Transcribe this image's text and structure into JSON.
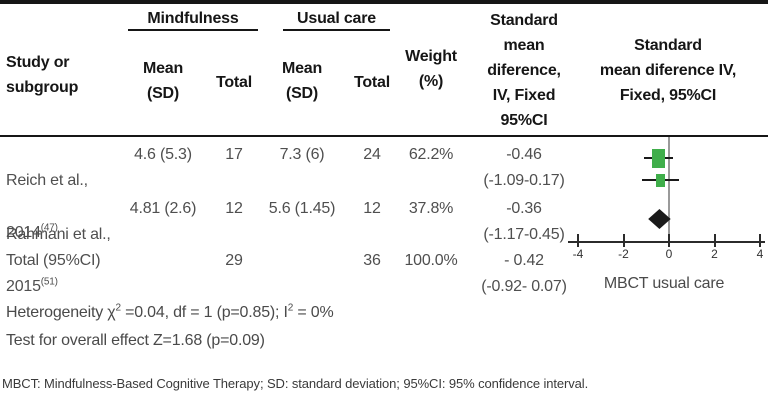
{
  "header": {
    "study_col": "Study or\nsubgroup",
    "group_mindfulness": "Mindfulness",
    "group_usual_care": "Usual care",
    "mean_sd": "Mean\n(SD)",
    "total": "Total",
    "weight": "Weight\n(%)",
    "smd_text_col": "Standard\nmean\ndiference,\nIV, Fixed\n95%CI",
    "smd_plot_col": "Standard\nmean diference IV,\nFixed, 95%CI"
  },
  "rows": [
    {
      "study_line1": "Reich et al.,",
      "study_year": "2014",
      "study_ref": "(47)",
      "mind_mean_sd": "4.6 (5.3)",
      "mind_total": "17",
      "usual_mean_sd": "7.3 (6)",
      "usual_total": "24",
      "weight": "62.2%",
      "smd": "-0.46\n(-1.09-0.17)"
    },
    {
      "study_line1": "Rahmani et al.,",
      "study_year": "2015",
      "study_ref": "(51)",
      "mind_mean_sd": "4.81 (2.6)",
      "mind_total": "12",
      "usual_mean_sd": "5.6 (1.45)",
      "usual_total": "12",
      "weight": "37.8%",
      "smd": "-0.36\n(-1.17-0.45)"
    }
  ],
  "total_row": {
    "label": "Total (95%CI)",
    "mind_total": "29",
    "usual_total": "36",
    "weight": "100.0%",
    "smd": "- 0.42\n(-0.92- 0.07)"
  },
  "footer": {
    "het_pre": "Heterogeneity χ",
    "sup_a": "2",
    "het_mid": " =0.04, df = 1 (p=0.85); I",
    "sup_b": "2",
    "het_post": " = 0%",
    "overall": "Test for overall effect Z=1.68 (p=0.09)",
    "note": "MBCT: Mindfulness-Based Cognitive Therapy; SD: standard deviation; 95%CI: 95% confidence interval."
  },
  "chart_data": {
    "type": "forest",
    "x_ticks": [
      -4,
      -2,
      0,
      2,
      4
    ],
    "xlim": [
      -4.4,
      4.3
    ],
    "zero_line_x": 0,
    "axis_label": "MBCT usual care",
    "series": [
      {
        "name": "Reich et al., 2014",
        "smd": -0.46,
        "ci": [
          -1.09,
          0.17
        ],
        "weight_pct": 62.2,
        "marker": "square"
      },
      {
        "name": "Rahmani et al., 2015",
        "smd": -0.36,
        "ci": [
          -1.17,
          0.45
        ],
        "weight_pct": 37.8,
        "marker": "square"
      },
      {
        "name": "Total (95%CI)",
        "smd": -0.42,
        "ci": [
          -0.92,
          0.07
        ],
        "weight_pct": 100.0,
        "marker": "diamond"
      }
    ],
    "colors": {
      "square": "#3fae4a",
      "diamond": "#1a1a1a",
      "zero_line": "#9a9a9a",
      "axis": "#2b2b2b"
    }
  }
}
